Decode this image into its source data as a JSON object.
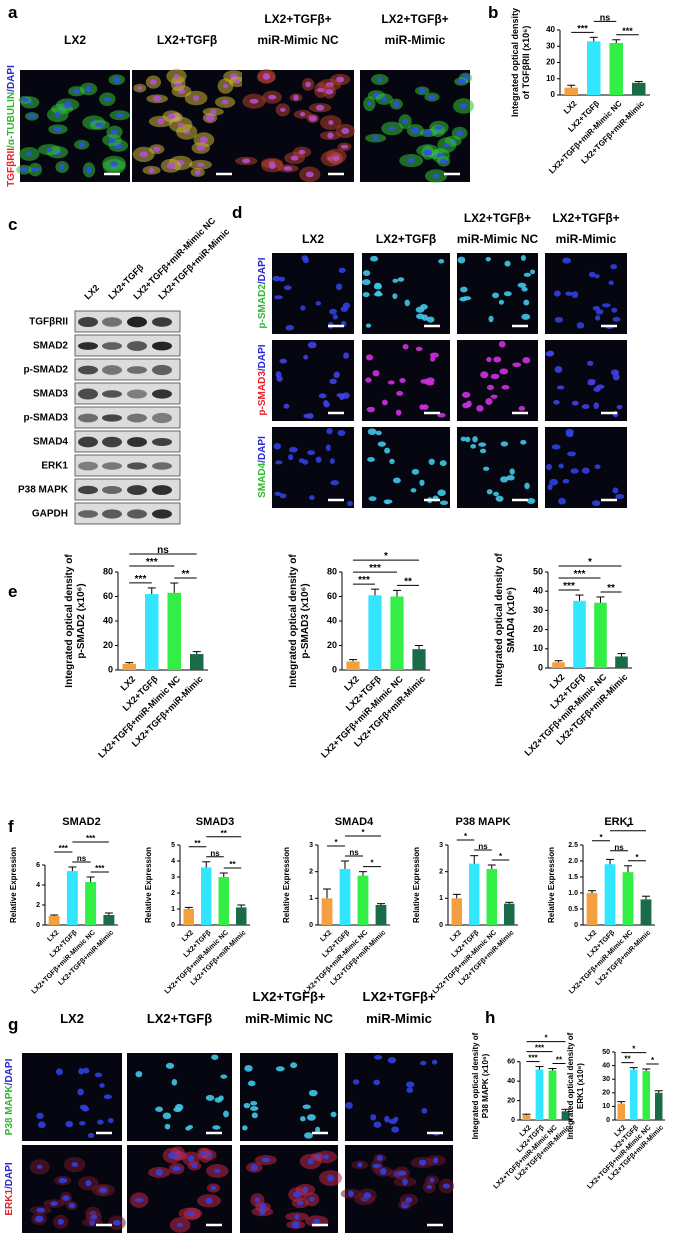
{
  "panel_labels": [
    "a",
    "b",
    "c",
    "d",
    "e",
    "f",
    "g",
    "h"
  ],
  "panel_a": {
    "columns": [
      [
        "LX2"
      ],
      [
        "LX2+TGFβ"
      ],
      [
        "LX2+TGFβ+",
        "miR-Mimic NC"
      ],
      [
        "LX2+TGFβ+",
        "miR-Mimic"
      ]
    ],
    "row_label": [
      {
        "text": "TGFβRII",
        "color": "#e8202a"
      },
      {
        "text": "/α-TUBULIN",
        "color": "#2eb82e"
      },
      {
        "text": "/DAPI",
        "color": "#2a2ad0"
      }
    ]
  },
  "panel_c": {
    "lanes": [
      "LX2",
      "LX2+TGFβ",
      "LX2+TGFβ+miR-Mimic NC",
      "LX2+TGFβ+miR-Mimic"
    ],
    "rows": [
      "TGFβRII",
      "SMAD2",
      "p-SMAD2",
      "SMAD3",
      "p-SMAD3",
      "SMAD4",
      "ERK1",
      "P38 MAPK",
      "GAPDH"
    ]
  },
  "panel_d": {
    "columns": [
      [
        "LX2"
      ],
      [
        "LX2+TGFβ"
      ],
      [
        "LX2+TGFβ+",
        "miR-Mimic NC"
      ],
      [
        "LX2+TGFβ+",
        "miR-Mimic"
      ]
    ],
    "rows": [
      [
        {
          "text": "p-SMAD2",
          "color": "#2eb82e"
        },
        {
          "text": "/DAPI",
          "color": "#2a2ad0"
        }
      ],
      [
        {
          "text": "p-SMAD3",
          "color": "#e8202a"
        },
        {
          "text": "/DAPI",
          "color": "#2a2ad0"
        }
      ],
      [
        {
          "text": "SMAD4",
          "color": "#2eb82e"
        },
        {
          "text": "/DAPI",
          "color": "#2a2ad0"
        }
      ]
    ]
  },
  "panel_g": {
    "columns": [
      [
        "LX2"
      ],
      [
        "LX2+TGFβ"
      ],
      [
        "LX2+TGFβ+",
        "miR-Mimic NC"
      ],
      [
        "LX2+TGFβ+",
        "miR-Mimic"
      ]
    ],
    "rows": [
      [
        {
          "text": "P38 MAPK",
          "color": "#2eb82e"
        },
        {
          "text": "/DAPI",
          "color": "#2a2ad0"
        }
      ],
      [
        {
          "text": "ERK1",
          "color": "#e8202a"
        },
        {
          "text": "/DAPI",
          "color": "#2a2ad0"
        }
      ]
    ]
  },
  "chart_data": [
    {
      "type": "bar",
      "ylabel": [
        "Integrated optical density",
        "of TGFβRII (x10⁶)"
      ],
      "categories": [
        "LX2",
        "LX2+TGFβ",
        "LX2+TGFβ+miR-Mimic NC",
        "LX2+TGFβ+miR-Mimic"
      ],
      "values": [
        4.5,
        33,
        32,
        7.5
      ],
      "errors": [
        1.5,
        2.5,
        2,
        0.8
      ],
      "colors": [
        "#f5a040",
        "#33e6ff",
        "#33ee44",
        "#1a6b47"
      ],
      "ylim": [
        0,
        40
      ],
      "yticks": [
        0,
        10,
        20,
        30,
        40
      ],
      "comparisons": [
        {
          "label": "ns",
          "between": [
            1,
            2
          ]
        },
        {
          "label": "***",
          "between": [
            0,
            1
          ]
        },
        {
          "label": "***",
          "between": [
            2,
            3
          ]
        }
      ]
    },
    {
      "type": "bar",
      "ylabel": [
        "Integrated optical density of",
        "p-SMAD2 (x10⁶)"
      ],
      "categories": [
        "LX2",
        "LX2+TGFβ",
        "LX2+TGFβ+miR-Mimic NC",
        "LX2+TGFβ+miR-Mimic"
      ],
      "values": [
        5,
        62,
        63,
        13
      ],
      "errors": [
        1,
        5,
        8,
        2
      ],
      "colors": [
        "#f5a040",
        "#33e6ff",
        "#33ee44",
        "#1a6b47"
      ],
      "ylim": [
        0,
        80
      ],
      "yticks": [
        0,
        20,
        40,
        60,
        80
      ],
      "comparisons": [
        {
          "label": "ns",
          "between": [
            0,
            3
          ]
        },
        {
          "label": "***",
          "between": [
            0,
            2
          ]
        },
        {
          "label": "***",
          "between": [
            0,
            1
          ]
        },
        {
          "label": "**",
          "between": [
            2,
            3
          ]
        }
      ]
    },
    {
      "type": "bar",
      "ylabel": [
        "Integrated optical density of",
        "p-SMAD3 (x10⁶)"
      ],
      "categories": [
        "LX2",
        "LX2+TGFβ",
        "LX2+TGFβ+miR-Mimic NC",
        "LX2+TGFβ+miR-Mimic"
      ],
      "values": [
        7,
        61,
        60,
        17
      ],
      "errors": [
        1.5,
        5,
        5,
        3
      ],
      "colors": [
        "#f5a040",
        "#33e6ff",
        "#33ee44",
        "#1a6b47"
      ],
      "ylim": [
        0,
        80
      ],
      "yticks": [
        0,
        20,
        40,
        60,
        80
      ],
      "comparisons": [
        {
          "label": "*",
          "between": [
            0,
            3
          ]
        },
        {
          "label": "***",
          "between": [
            0,
            2
          ]
        },
        {
          "label": "***",
          "between": [
            0,
            1
          ]
        },
        {
          "label": "**",
          "between": [
            2,
            3
          ]
        }
      ]
    },
    {
      "type": "bar",
      "ylabel": [
        "Integrated optical density of",
        "SMAD4 (x10⁶)"
      ],
      "categories": [
        "LX2",
        "LX2+TGFβ",
        "LX2+TGFβ+miR-Mimic NC",
        "LX2+TGFβ+miR-Mimic"
      ],
      "values": [
        3,
        35,
        34,
        6
      ],
      "errors": [
        0.8,
        3,
        3,
        1.5
      ],
      "colors": [
        "#f5a040",
        "#33e6ff",
        "#33ee44",
        "#1a6b47"
      ],
      "ylim": [
        0,
        50
      ],
      "yticks": [
        0,
        10,
        20,
        30,
        40,
        50
      ],
      "comparisons": [
        {
          "label": "*",
          "between": [
            0,
            3
          ]
        },
        {
          "label": "***",
          "between": [
            0,
            2
          ]
        },
        {
          "label": "***",
          "between": [
            0,
            1
          ]
        },
        {
          "label": "**",
          "between": [
            2,
            3
          ]
        }
      ]
    },
    {
      "type": "bar",
      "title": "SMAD2",
      "ylabel": [
        "Relative Expression"
      ],
      "categories": [
        "LX2",
        "LX2+TGFβ",
        "LX2+TGFβ+miR-Mimic NC",
        "LX2+TGFβ+miR-Mimic"
      ],
      "values": [
        0.9,
        5.4,
        4.3,
        1.0
      ],
      "errors": [
        0.1,
        0.4,
        0.5,
        0.2
      ],
      "colors": [
        "#f5a040",
        "#33e6ff",
        "#33ee44",
        "#1a6b47"
      ],
      "ylim": [
        0,
        8
      ],
      "yticks": [
        0,
        2,
        4,
        6
      ],
      "comparisons": [
        {
          "label": "***",
          "between": [
            1,
            3
          ]
        },
        {
          "label": "***",
          "between": [
            0,
            1
          ]
        },
        {
          "label": "ns",
          "between": [
            1,
            2
          ]
        },
        {
          "label": "***",
          "between": [
            2,
            3
          ]
        }
      ]
    },
    {
      "type": "bar",
      "title": "SMAD3",
      "ylabel": [
        "Relative Expression"
      ],
      "categories": [
        "LX2",
        "LX2+TGFβ",
        "LX2+TGFβ+miR-Mimic NC",
        "LX2+TGFβ+miR-Mimic"
      ],
      "values": [
        1.0,
        3.6,
        3.0,
        1.1
      ],
      "errors": [
        0.1,
        0.35,
        0.25,
        0.15
      ],
      "colors": [
        "#f5a040",
        "#33e6ff",
        "#33ee44",
        "#1a6b47"
      ],
      "ylim": [
        0,
        5
      ],
      "yticks": [
        0,
        1,
        2,
        3,
        4,
        5
      ],
      "comparisons": [
        {
          "label": "**",
          "between": [
            1,
            3
          ]
        },
        {
          "label": "**",
          "between": [
            0,
            1
          ]
        },
        {
          "label": "ns",
          "between": [
            1,
            2
          ]
        },
        {
          "label": "**",
          "between": [
            2,
            3
          ]
        }
      ]
    },
    {
      "type": "bar",
      "title": "SMAD4",
      "ylabel": [
        "Relative Expression"
      ],
      "categories": [
        "LX2",
        "LX2+TGFβ",
        "LX2+TGFβ+miR-Mimic NC",
        "LX2+TGFβ+miR-Mimic"
      ],
      "values": [
        1.0,
        2.1,
        1.85,
        0.75
      ],
      "errors": [
        0.35,
        0.3,
        0.15,
        0.05
      ],
      "colors": [
        "#f5a040",
        "#33e6ff",
        "#33ee44",
        "#1a6b47"
      ],
      "ylim": [
        0,
        3
      ],
      "yticks": [
        0,
        1,
        2,
        3
      ],
      "comparisons": [
        {
          "label": "*",
          "between": [
            1,
            3
          ]
        },
        {
          "label": "*",
          "between": [
            0,
            1
          ]
        },
        {
          "label": "ns",
          "between": [
            1,
            2
          ]
        },
        {
          "label": "*",
          "between": [
            2,
            3
          ]
        }
      ]
    },
    {
      "type": "bar",
      "title": "P38 MAPK",
      "ylabel": [
        "Relative Expression"
      ],
      "categories": [
        "LX2",
        "LX2+TGFβ",
        "LX2+TGFβ+miR-Mimic NC",
        "LX2+TGFβ+miR-Mimic"
      ],
      "values": [
        1.0,
        2.3,
        2.1,
        0.8
      ],
      "errors": [
        0.15,
        0.3,
        0.15,
        0.05
      ],
      "colors": [
        "#f5a040",
        "#33e6ff",
        "#33ee44",
        "#1a6b47"
      ],
      "ylim": [
        0,
        3
      ],
      "yticks": [
        0,
        1,
        2,
        3
      ],
      "comparisons": [
        {
          "label": "*",
          "between": [
            0,
            1
          ]
        },
        {
          "label": "ns",
          "between": [
            1,
            2
          ]
        },
        {
          "label": "*",
          "between": [
            2,
            3
          ]
        }
      ]
    },
    {
      "type": "bar",
      "title": "ERK1",
      "ylabel": [
        "Relative Expression"
      ],
      "categories": [
        "LX2",
        "LX2+TGFβ",
        "LX2+TGFβ+miR-Mimic NC",
        "LX2+TGFβ+miR-Mimic"
      ],
      "values": [
        1.0,
        1.9,
        1.65,
        0.8
      ],
      "errors": [
        0.07,
        0.15,
        0.2,
        0.1
      ],
      "colors": [
        "#f5a040",
        "#33e6ff",
        "#33ee44",
        "#1a6b47"
      ],
      "ylim": [
        0,
        2.5
      ],
      "yticks": [
        0,
        0.5,
        {
          "value": 1,
          "label": "1.0"
        },
        1.5,
        {
          "value": 2,
          "label": "2.0"
        },
        2.5
      ],
      "comparisons": [
        {
          "label": "*",
          "between": [
            1,
            3
          ]
        },
        {
          "label": "*",
          "between": [
            0,
            1
          ]
        },
        {
          "label": "ns",
          "between": [
            1,
            2
          ]
        },
        {
          "label": "*",
          "between": [
            2,
            3
          ]
        }
      ]
    },
    {
      "type": "bar",
      "ylabel": [
        "Integrated optical density of",
        "P38 MAPK (x10⁶)"
      ],
      "categories": [
        "LX2",
        "LX2+TGFβ",
        "LX2+TGFβ+miR-Mimic NC",
        "LX2+TGFβ+miR-Mimic"
      ],
      "values": [
        5,
        52,
        51,
        9
      ],
      "errors": [
        1,
        3,
        2,
        2
      ],
      "colors": [
        "#f5a040",
        "#33e6ff",
        "#33ee44",
        "#1a6b47"
      ],
      "ylim": [
        0,
        70
      ],
      "yticks": [
        0,
        20,
        40,
        60
      ],
      "comparisons": [
        {
          "label": "*",
          "between": [
            0,
            3
          ]
        },
        {
          "label": "***",
          "between": [
            0,
            2
          ]
        },
        {
          "label": "***",
          "between": [
            0,
            1
          ]
        },
        {
          "label": "**",
          "between": [
            2,
            3
          ]
        }
      ]
    },
    {
      "type": "bar",
      "ylabel": [
        "Integrated optical density of",
        "ERK1 (x10⁶)"
      ],
      "categories": [
        "LX2",
        "LX2+TGFβ",
        "LX2+TGFβ+miR-Mimic NC",
        "LX2+TGFβ+miR-Mimic"
      ],
      "values": [
        12,
        37,
        36,
        20
      ],
      "errors": [
        1.5,
        1.5,
        1.5,
        1.5
      ],
      "colors": [
        "#f5a040",
        "#33e6ff",
        "#33ee44",
        "#1a6b47"
      ],
      "ylim": [
        0,
        50
      ],
      "yticks": [
        0,
        10,
        20,
        30,
        40,
        50
      ],
      "comparisons": [
        {
          "label": "*",
          "between": [
            0,
            2
          ]
        },
        {
          "label": "**",
          "between": [
            0,
            1
          ]
        },
        {
          "label": "*",
          "between": [
            2,
            3
          ]
        }
      ]
    }
  ]
}
